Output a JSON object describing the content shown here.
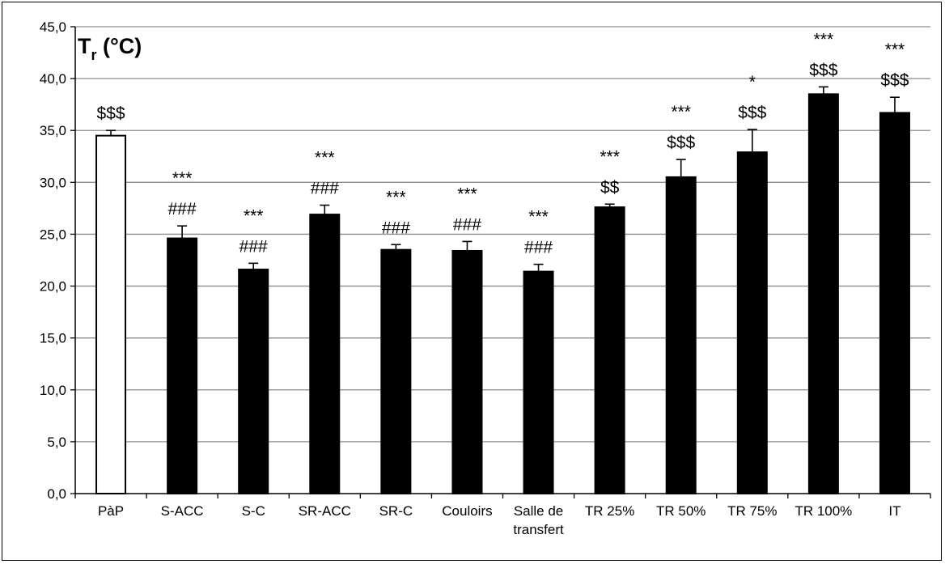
{
  "chart_data": {
    "type": "bar",
    "title_main": "T",
    "title_sub": "r",
    "title_unit": " (°C)",
    "categories": [
      [
        "PàP"
      ],
      [
        "S-ACC"
      ],
      [
        "S-C"
      ],
      [
        "SR-ACC"
      ],
      [
        "SR-C"
      ],
      [
        "Couloirs"
      ],
      [
        "Salle de",
        "transfert"
      ],
      [
        "TR 25%"
      ],
      [
        "TR 50%"
      ],
      [
        "TR 75%"
      ],
      [
        "TR 100%"
      ],
      [
        "IT"
      ]
    ],
    "values": [
      34.5,
      24.6,
      21.6,
      26.9,
      23.5,
      23.4,
      21.4,
      27.6,
      30.5,
      32.9,
      38.5,
      36.7
    ],
    "errors": [
      0.5,
      1.2,
      0.6,
      0.9,
      0.5,
      0.9,
      0.7,
      0.3,
      1.7,
      2.2,
      0.7,
      1.5
    ],
    "fills": [
      "#ffffff",
      "#000000",
      "#000000",
      "#000000",
      "#000000",
      "#000000",
      "#000000",
      "#000000",
      "#000000",
      "#000000",
      "#000000",
      "#000000"
    ],
    "annotations": [
      [
        "$$$"
      ],
      [
        "***",
        "###"
      ],
      [
        "***",
        "###"
      ],
      [
        "***",
        "###"
      ],
      [
        "***",
        "###"
      ],
      [
        "***",
        "###"
      ],
      [
        "***",
        "###"
      ],
      [
        "***",
        "$$"
      ],
      [
        "***",
        "$$$"
      ],
      [
        "*",
        "$$$"
      ],
      [
        "***",
        "$$$"
      ],
      [
        "***",
        "$$$"
      ]
    ],
    "y_ticks": [
      "0,0",
      "5,0",
      "10,0",
      "15,0",
      "20,0",
      "25,0",
      "30,0",
      "35,0",
      "40,0",
      "45,0"
    ],
    "ylim": [
      0,
      45
    ],
    "grid": true,
    "legend": "none"
  }
}
